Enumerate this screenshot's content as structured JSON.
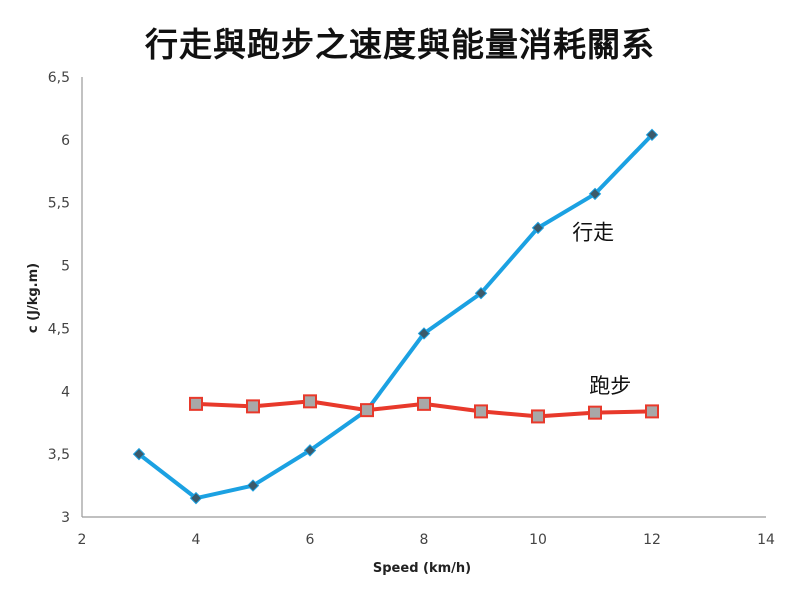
{
  "chart_data": {
    "type": "line",
    "title": "行走與跑步之速度與能量消耗關系",
    "xlabel": "Speed (km/h)",
    "ylabel": "c (J/kg.m)",
    "xlim": [
      2,
      14
    ],
    "ylim": [
      3,
      6.5
    ],
    "x_ticks": [
      "2",
      "4",
      "6",
      "8",
      "10",
      "12",
      "14"
    ],
    "y_ticks": [
      "3",
      "3,5",
      "4",
      "4,5",
      "5",
      "5,5",
      "6",
      "6,5"
    ],
    "grid": false,
    "legend": "inline labels",
    "series": [
      {
        "name": "行走",
        "color": "#1BA1E2",
        "marker": "diamond",
        "x": [
          3,
          4,
          5,
          6,
          7,
          8,
          9,
          10,
          11,
          12
        ],
        "y": [
          3.5,
          3.15,
          3.25,
          3.53,
          3.85,
          4.46,
          4.78,
          5.3,
          5.57,
          6.04
        ]
      },
      {
        "name": "跑步",
        "color": "#E8392B",
        "marker": "square",
        "x": [
          4,
          5,
          6,
          7,
          8,
          9,
          10,
          11,
          12
        ],
        "y": [
          3.9,
          3.88,
          3.92,
          3.85,
          3.9,
          3.84,
          3.8,
          3.83,
          3.84
        ]
      }
    ]
  }
}
